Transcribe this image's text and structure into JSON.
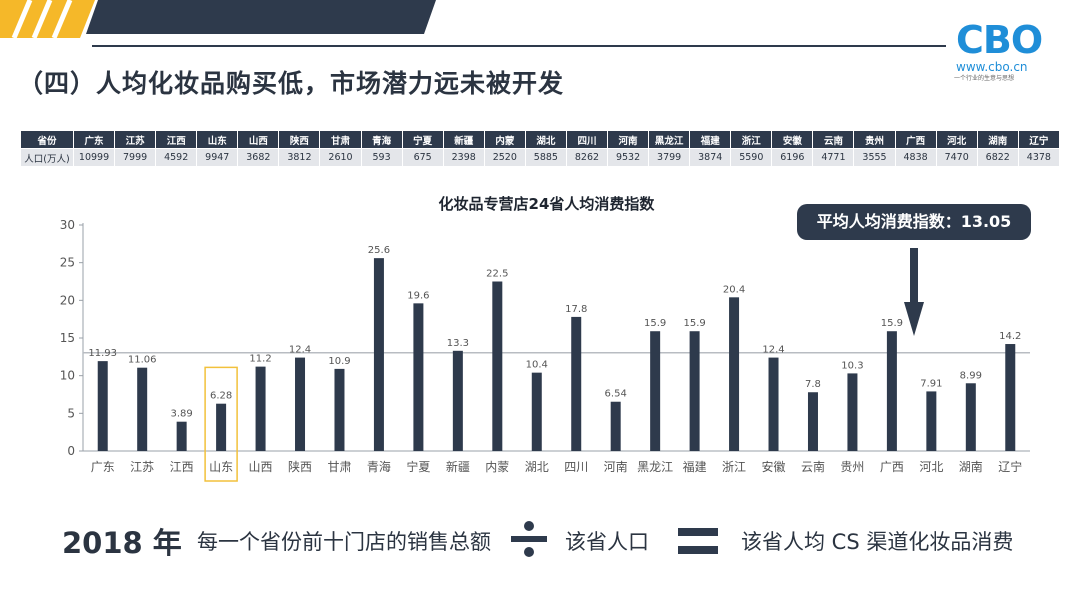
{
  "title": "（四）人均化妆品购买低，市场潜力远未被开发",
  "logo": {
    "main": "CBO",
    "url": "www.cbo.cn",
    "tagline": "一个行业的生意与思想"
  },
  "colors": {
    "navy": "#2e3a4c",
    "accent_yellow": "#f5b829",
    "brand_blue": "#1f8ed8",
    "highlight_box": "#f2c13b"
  },
  "population_table": {
    "header_label": "省份",
    "value_label": "人口(万人)",
    "provinces": [
      "广东",
      "江苏",
      "江西",
      "山东",
      "山西",
      "陕西",
      "甘肃",
      "青海",
      "宁夏",
      "新疆",
      "内蒙",
      "湖北",
      "四川",
      "河南",
      "黑龙江",
      "福建",
      "浙江",
      "安徽",
      "云南",
      "贵州",
      "广西",
      "河北",
      "湖南",
      "辽宁"
    ],
    "values": [
      "10999",
      "7999",
      "4592",
      "9947",
      "3682",
      "3812",
      "2610",
      "593",
      "675",
      "2398",
      "2520",
      "5885",
      "8262",
      "9532",
      "3799",
      "3874",
      "5590",
      "6196",
      "4771",
      "3555",
      "4838",
      "7470",
      "6822",
      "4378"
    ]
  },
  "chart_data": {
    "type": "bar",
    "title": "化妆品专营店24省人均消费指数",
    "categories": [
      "广东",
      "江苏",
      "江西",
      "山东",
      "山西",
      "陕西",
      "甘肃",
      "青海",
      "宁夏",
      "新疆",
      "内蒙",
      "湖北",
      "四川",
      "河南",
      "黑龙江",
      "福建",
      "浙江",
      "安徽",
      "云南",
      "贵州",
      "广西",
      "河北",
      "湖南",
      "辽宁"
    ],
    "values": [
      11.93,
      11.06,
      3.89,
      6.28,
      11.2,
      12.4,
      10.9,
      25.6,
      19.6,
      13.3,
      22.5,
      10.4,
      17.8,
      6.54,
      15.9,
      15.9,
      20.4,
      12.4,
      7.8,
      10.3,
      15.9,
      7.91,
      8.99,
      14.2
    ],
    "data_labels": [
      "11.93",
      "11.06",
      "3.89",
      "6.28",
      "11.2",
      "12.4",
      "10.9",
      "25.6",
      "19.6",
      "13.3",
      "22.5",
      "10.4",
      "17.8",
      "6.54",
      "15.9",
      "15.9",
      "20.4",
      "12.4",
      "7.8",
      "10.3",
      "15.9",
      "7.91",
      "8.99",
      "14.2"
    ],
    "ylim": [
      0,
      30
    ],
    "yticks": [
      0,
      5,
      10,
      15,
      20,
      25,
      30
    ],
    "reference_line": 13.05,
    "highlighted_category": "山东",
    "grid": false,
    "xlabel": "",
    "ylabel": ""
  },
  "average_callout": "平均人均消费指数：13.05",
  "formula": {
    "year": "2018 年",
    "numerator": "每一个省份前十门店的销售总额",
    "denominator": "该省人口",
    "result": "该省人均 CS 渠道化妆品消费"
  }
}
